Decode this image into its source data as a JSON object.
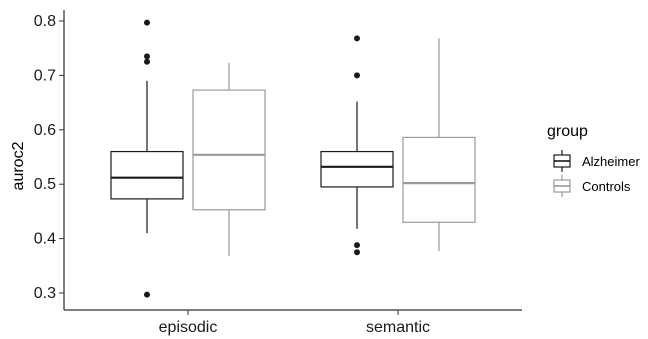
{
  "chart_data": {
    "type": "boxplot",
    "categories": [
      "episodic",
      "semantic"
    ],
    "ylabel": "auroc2",
    "xlabel": "",
    "ylim": [
      0.28,
      0.82
    ],
    "yticks": [
      0.3,
      0.4,
      0.5,
      0.6,
      0.7,
      0.8
    ],
    "ytick_labels": [
      "0.3",
      "0.4",
      "0.5",
      "0.6",
      "0.7",
      "0.8"
    ],
    "grid": false,
    "legend": {
      "title": "group",
      "placement": "right"
    },
    "series": [
      {
        "name": "Alzheimer",
        "color": "#1a1a1a",
        "boxes": [
          {
            "category": "episodic",
            "whisker_low": 0.41,
            "q1": 0.473,
            "median": 0.512,
            "q3": 0.56,
            "whisker_high": 0.69,
            "outliers": [
              0.797,
              0.735,
              0.725,
              0.297
            ]
          },
          {
            "category": "semantic",
            "whisker_low": 0.418,
            "q1": 0.495,
            "median": 0.532,
            "q3": 0.56,
            "whisker_high": 0.652,
            "outliers": [
              0.768,
              0.7,
              0.388,
              0.375
            ]
          }
        ]
      },
      {
        "name": "Controls",
        "color": "#9a9a9a",
        "boxes": [
          {
            "category": "episodic",
            "whisker_low": 0.368,
            "q1": 0.453,
            "median": 0.554,
            "q3": 0.673,
            "whisker_high": 0.723,
            "outliers": []
          },
          {
            "category": "semantic",
            "whisker_low": 0.377,
            "q1": 0.43,
            "median": 0.502,
            "q3": 0.586,
            "whisker_high": 0.768,
            "outliers": []
          }
        ]
      }
    ]
  }
}
